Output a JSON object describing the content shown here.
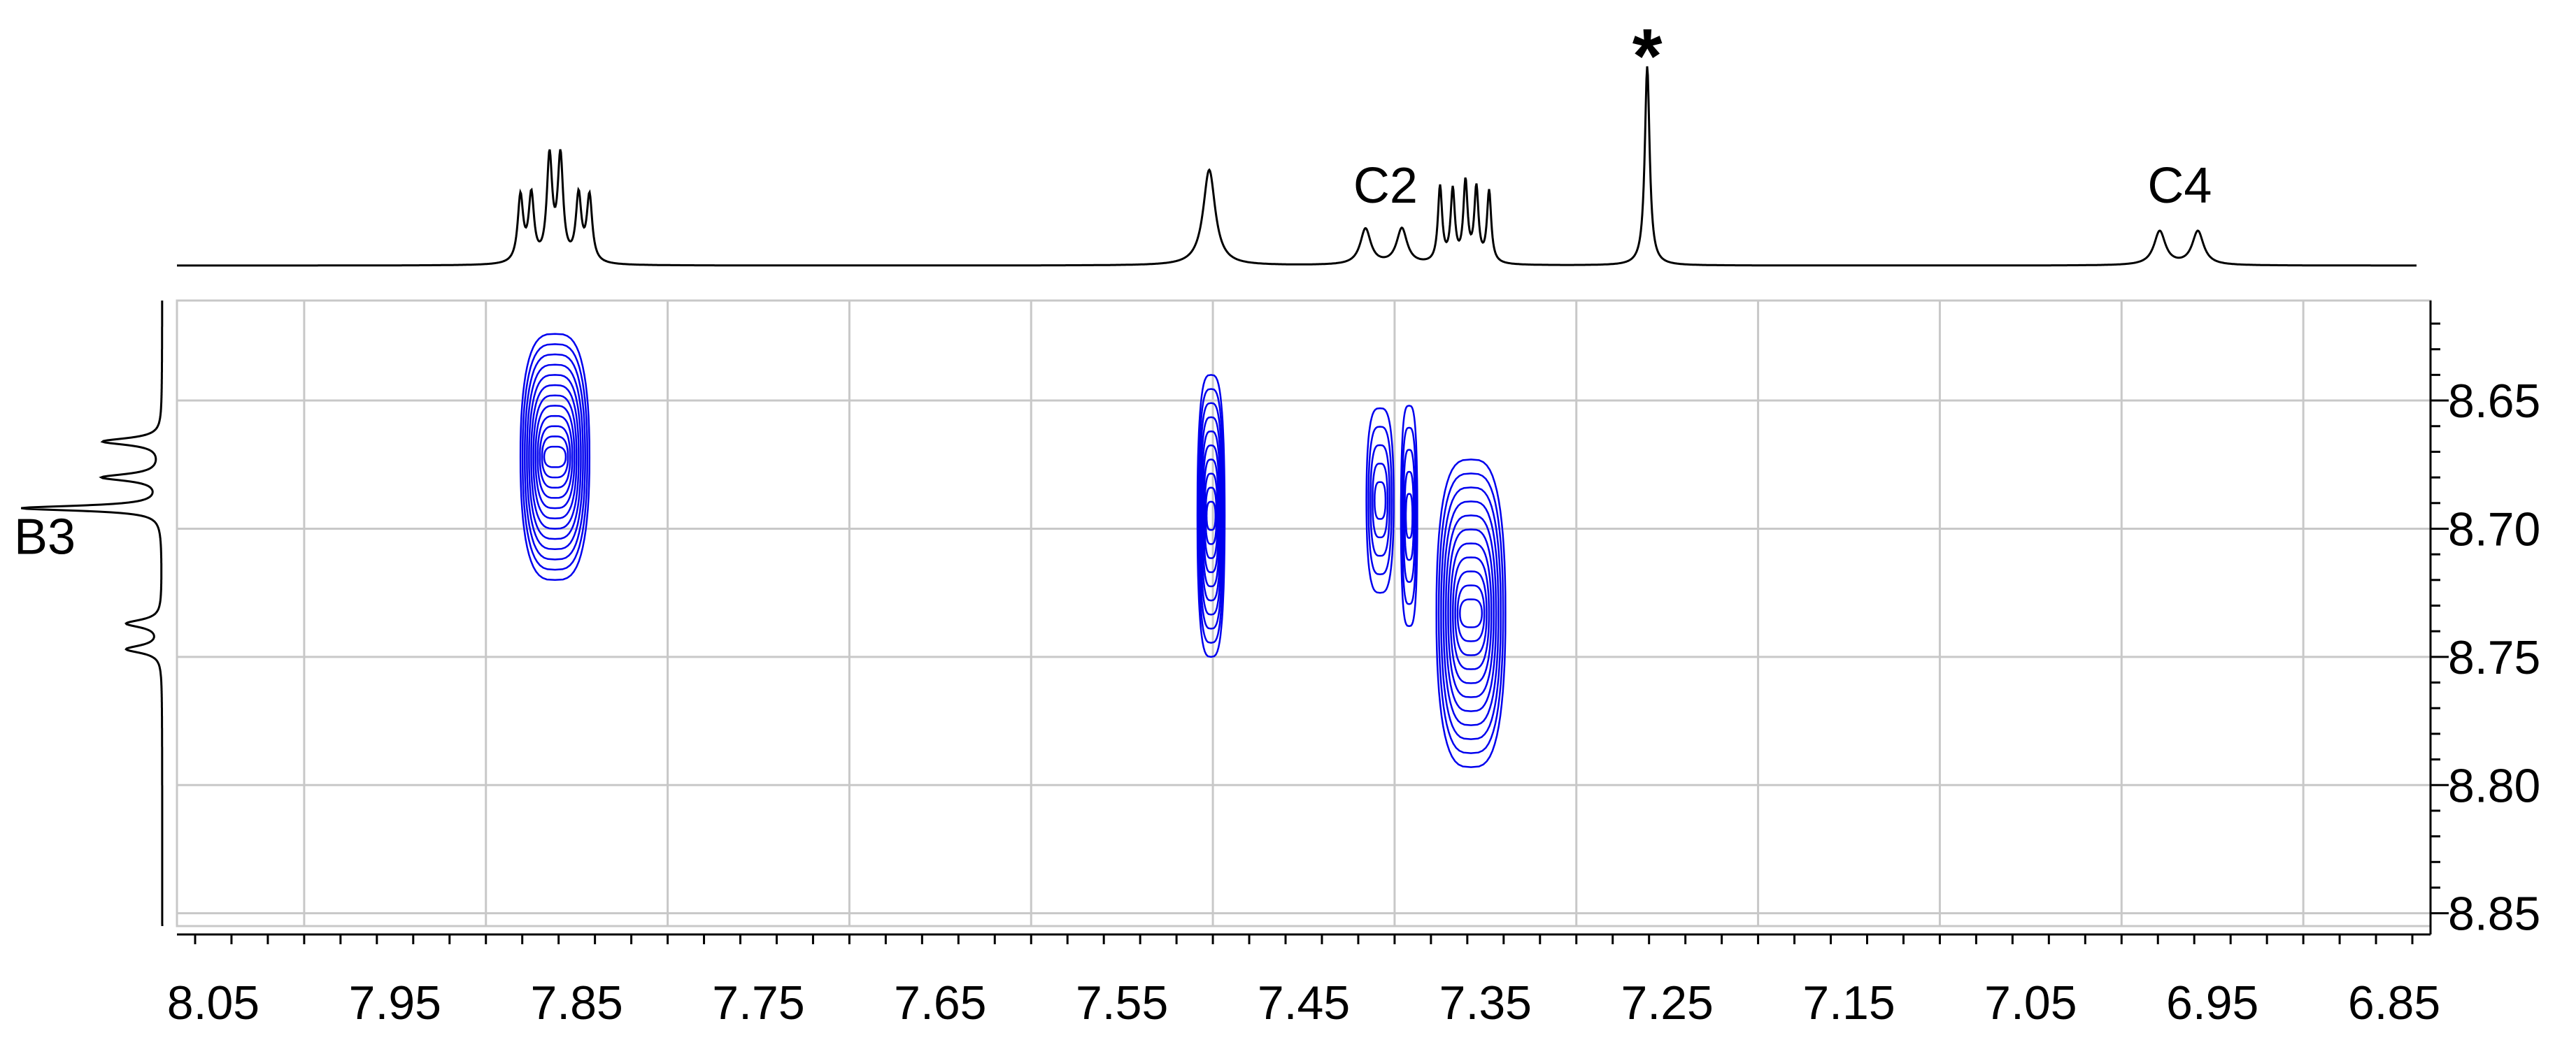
{
  "chart_data": {
    "type": "contour",
    "title": "",
    "xlabel": "",
    "ylabel": "",
    "x_axis": {
      "range": [
        8.07,
        6.83
      ],
      "reversed": true,
      "tick_labels": [
        "8.05",
        "7.95",
        "7.85",
        "7.75",
        "7.65",
        "7.55",
        "7.45",
        "7.35",
        "7.25",
        "7.15",
        "7.05",
        "6.95",
        "6.85"
      ],
      "gridlines": [
        8.0,
        7.9,
        7.8,
        7.7,
        7.6,
        7.5,
        7.4,
        7.3,
        7.2,
        7.1,
        7.0,
        6.9
      ]
    },
    "y_axis": {
      "range": [
        8.611,
        8.855
      ],
      "reversed": true,
      "position": "right",
      "tick_labels": [
        "8.65",
        "8.70",
        "8.75",
        "8.80",
        "8.85"
      ]
    },
    "grid": true,
    "contour_color": "#0000ee",
    "line_color": "#000000",
    "top_projection": {
      "peaks": [
        {
          "ppm": 7.881,
          "height": 0.33,
          "width": 0.0018
        },
        {
          "ppm": 7.875,
          "height": 0.33,
          "width": 0.0018
        },
        {
          "ppm": 7.849,
          "height": 0.33,
          "width": 0.0018
        },
        {
          "ppm": 7.843,
          "height": 0.33,
          "width": 0.0018
        },
        {
          "ppm": 7.865,
          "height": 0.52,
          "width": 0.0018
        },
        {
          "ppm": 7.859,
          "height": 0.52,
          "width": 0.0018
        },
        {
          "ppm": 7.502,
          "height": 0.48,
          "width": 0.004
        },
        {
          "ppm": 7.416,
          "height": 0.18,
          "width": 0.0035
        },
        {
          "ppm": 7.396,
          "height": 0.18,
          "width": 0.0035
        },
        {
          "ppm": 7.375,
          "height": 0.38,
          "width": 0.0014
        },
        {
          "ppm": 7.368,
          "height": 0.36,
          "width": 0.0014
        },
        {
          "ppm": 7.361,
          "height": 0.4,
          "width": 0.0014
        },
        {
          "ppm": 7.355,
          "height": 0.37,
          "width": 0.0014
        },
        {
          "ppm": 7.348,
          "height": 0.36,
          "width": 0.0014
        },
        {
          "ppm": 7.261,
          "height": 1.0,
          "width": 0.0016
        },
        {
          "ppm": 6.979,
          "height": 0.17,
          "width": 0.0038
        },
        {
          "ppm": 6.958,
          "height": 0.17,
          "width": 0.0038
        }
      ]
    },
    "left_projection": {
      "peaks": [
        {
          "ppm": 8.666,
          "height": 0.42,
          "width": 0.0016
        },
        {
          "ppm": 8.68,
          "height": 0.42,
          "width": 0.0016
        },
        {
          "ppm": 8.692,
          "height": 1.0,
          "width": 0.0012
        },
        {
          "ppm": 8.737,
          "height": 0.25,
          "width": 0.0018
        },
        {
          "ppm": 8.747,
          "height": 0.25,
          "width": 0.0018
        }
      ]
    },
    "cross_peaks": [
      {
        "x": 7.862,
        "y": 8.672,
        "half_width_x": 0.019,
        "half_height_y": 0.048,
        "levels": 12
      },
      {
        "x": 7.501,
        "y": 8.695,
        "half_width_x": 0.0075,
        "half_height_y": 0.055,
        "levels": 10
      },
      {
        "x": 7.408,
        "y": 8.689,
        "half_width_x": 0.0075,
        "half_height_y": 0.036,
        "levels": 5
      },
      {
        "x": 7.392,
        "y": 8.695,
        "half_width_x": 0.0045,
        "half_height_y": 0.043,
        "levels": 5
      },
      {
        "x": 7.358,
        "y": 8.733,
        "half_width_x": 0.019,
        "half_height_y": 0.06,
        "levels": 11
      }
    ],
    "annotations": [
      {
        "text": "*",
        "ppm": 7.261,
        "axis": "top"
      },
      {
        "text": "C2",
        "ppm": 7.405,
        "axis": "top"
      },
      {
        "text": "C4",
        "ppm": 6.968,
        "axis": "top"
      },
      {
        "text": "B3",
        "ppm": 8.7,
        "axis": "left"
      }
    ]
  }
}
